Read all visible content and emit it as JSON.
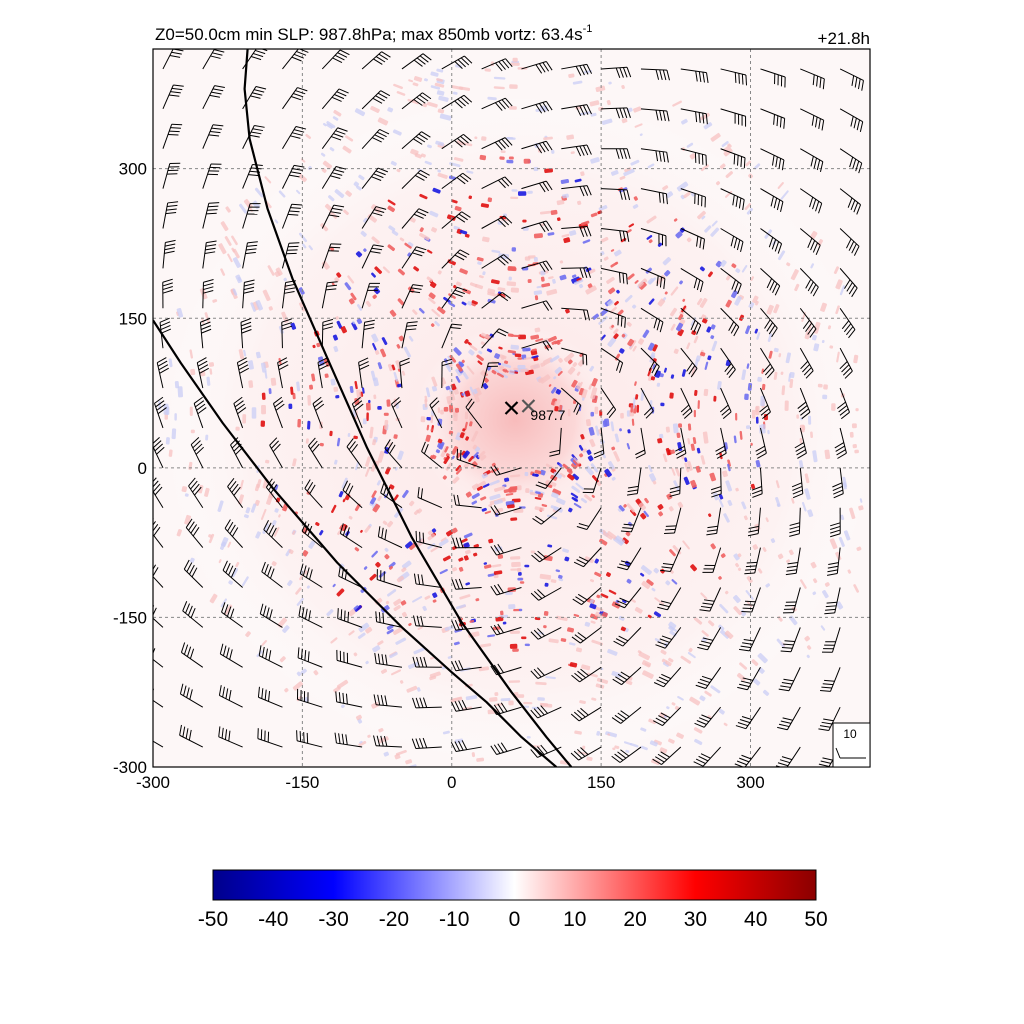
{
  "header": {
    "left_main": "Z0=50.0cm  min SLP: 987.8hPa; max 850mb vortz:  63.4s",
    "left_sup": "-1",
    "right": "+21.8h"
  },
  "chart_data": {
    "type": "heatmap",
    "field": "850mb relative vorticity",
    "xlim": [
      -300,
      420
    ],
    "ylim": [
      -300,
      420
    ],
    "x_ticks": [
      "-300",
      "-150",
      "0",
      "150",
      "300"
    ],
    "y_ticks": [
      "-300",
      "-150",
      "0",
      "150",
      "300"
    ],
    "grid": true,
    "center_markers": [
      {
        "x": 60,
        "y": 60,
        "color": "#000000"
      },
      {
        "x": 77,
        "y": 62,
        "color": "#555555"
      }
    ],
    "center_label": {
      "text": "987.7",
      "x": 77,
      "y": 50
    },
    "wind_barbs": {
      "spacing": 40,
      "circulation": "cyclonic"
    },
    "reference_vector": {
      "label": "10"
    },
    "track_lines": [
      [
        [
          -205,
          420
        ],
        [
          -208,
          380
        ],
        [
          -203,
          330
        ],
        [
          -185,
          260
        ],
        [
          -160,
          190
        ],
        [
          -125,
          110
        ],
        [
          -85,
          20
        ],
        [
          -40,
          -70
        ],
        [
          10,
          -155
        ],
        [
          60,
          -225
        ],
        [
          95,
          -270
        ],
        [
          120,
          -300
        ]
      ],
      [
        [
          -300,
          148
        ],
        [
          -272,
          105
        ],
        [
          -230,
          45
        ],
        [
          -180,
          -20
        ],
        [
          -115,
          -95
        ],
        [
          -50,
          -160
        ],
        [
          0,
          -205
        ],
        [
          35,
          -235
        ],
        [
          70,
          -270
        ],
        [
          105,
          -300
        ]
      ]
    ],
    "colorbar": {
      "ticks": [
        "-50",
        "-40",
        "-30",
        "-20",
        "-10",
        "0",
        "10",
        "20",
        "30",
        "40",
        "50"
      ],
      "range": [
        -50,
        50
      ],
      "colors": [
        "#00008b",
        "#0000ff",
        "#ffffff",
        "#ff0000",
        "#8b0000"
      ]
    }
  }
}
